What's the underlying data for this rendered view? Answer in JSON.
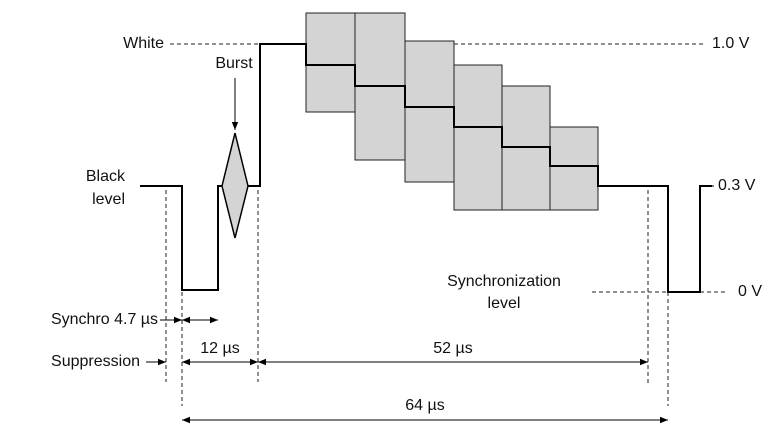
{
  "levels": {
    "white": "White",
    "white_voltage": "1.0 V",
    "black": [
      "Black",
      "level"
    ],
    "black_voltage": "0.3 V",
    "sync": [
      "Synchronization",
      "level"
    ],
    "sync_voltage": "0 V"
  },
  "burst": "Burst",
  "intervals": {
    "synchro": "Synchro 4.7 µs",
    "suppression": "Suppression",
    "burst_gap": "12 µs",
    "active": "52 µs",
    "line": "64 µs"
  }
}
